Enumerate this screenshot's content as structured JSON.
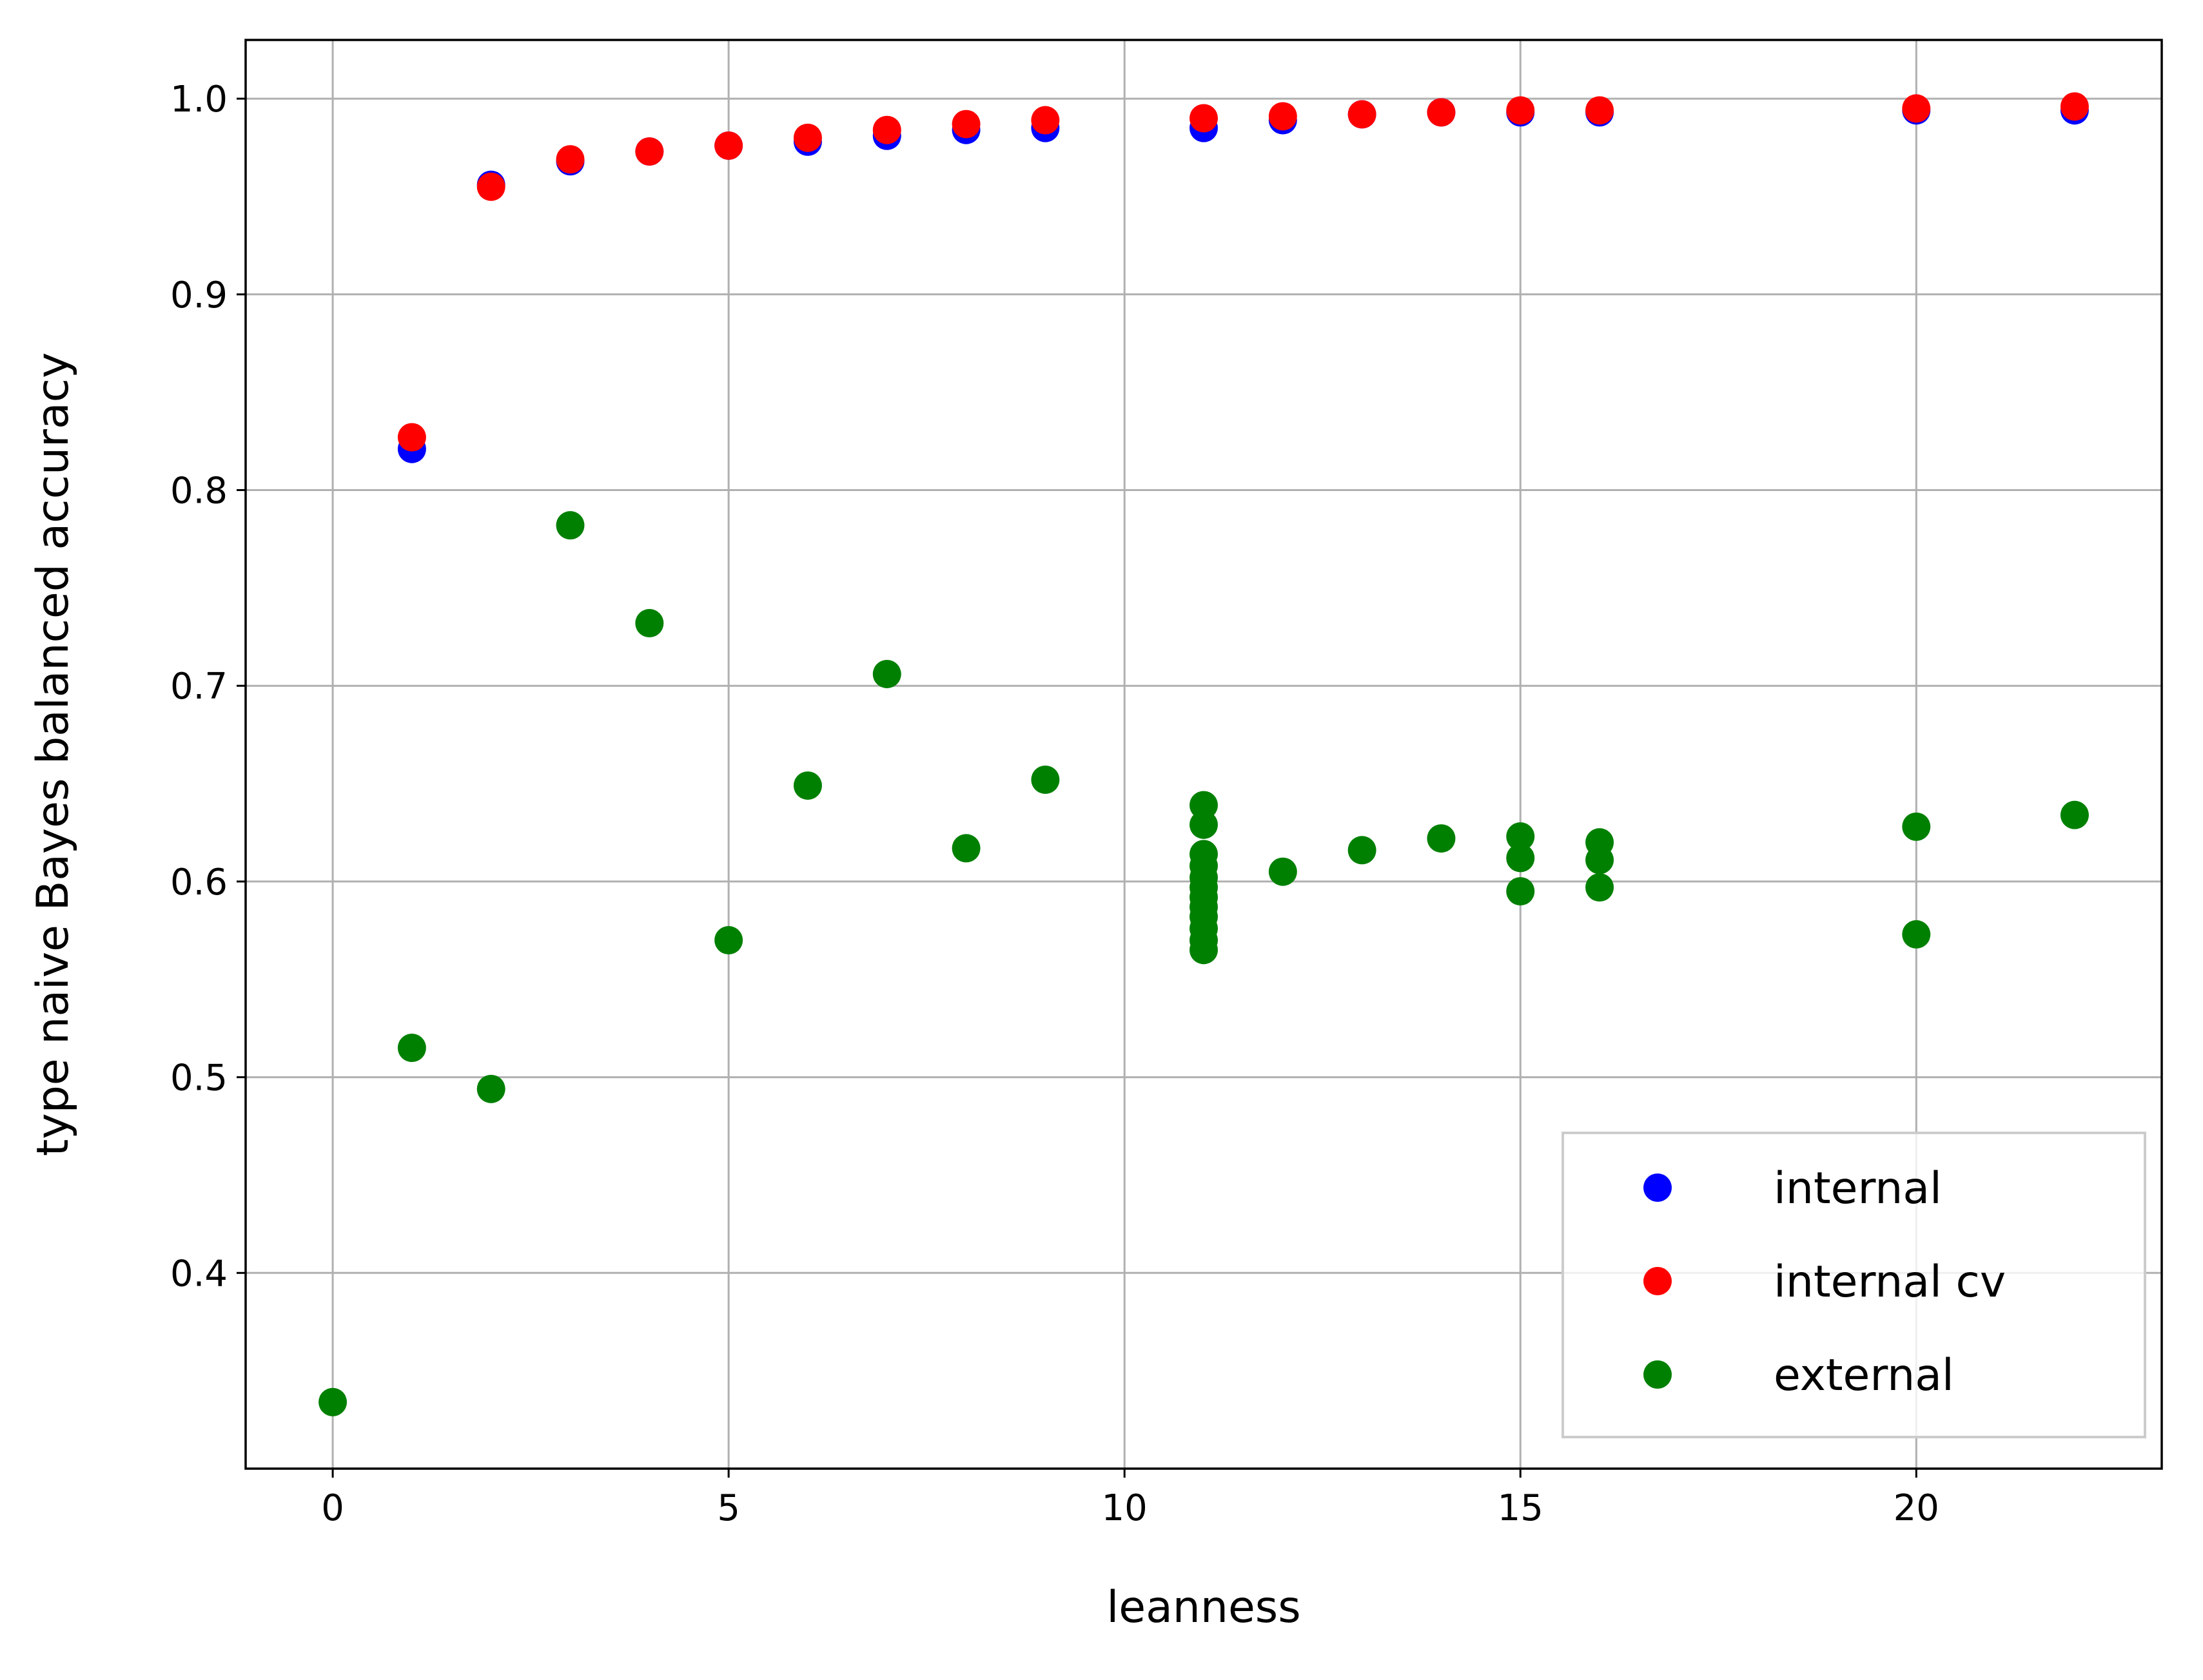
{
  "chart_data": {
    "type": "scatter",
    "xlabel": "leanness",
    "ylabel": "type naive Bayes balanced accuracy",
    "xlim": [
      -1.1,
      23.1
    ],
    "ylim": [
      0.3,
      1.03
    ],
    "xticks": [
      0,
      5,
      10,
      15,
      20
    ],
    "yticks": [
      0.4,
      0.5,
      0.6,
      0.7,
      0.8,
      0.9,
      1.0
    ],
    "xtick_labels": [
      "0",
      "5",
      "10",
      "15",
      "20"
    ],
    "ytick_labels": [
      "0.4",
      "0.5",
      "0.6",
      "0.7",
      "0.8",
      "0.9",
      "1.0"
    ],
    "grid": true,
    "legend_position": "bottom-right",
    "series": [
      {
        "name": "internal",
        "color": "#0000ff",
        "points": [
          [
            1,
            0.821
          ],
          [
            2,
            0.956
          ],
          [
            3,
            0.968
          ],
          [
            4,
            0.973
          ],
          [
            5,
            0.976
          ],
          [
            6,
            0.978
          ],
          [
            7,
            0.981
          ],
          [
            8,
            0.984
          ],
          [
            9,
            0.985
          ],
          [
            11,
            0.985
          ],
          [
            12,
            0.989
          ],
          [
            13,
            0.992
          ],
          [
            14,
            0.993
          ],
          [
            15,
            0.993
          ],
          [
            16,
            0.993
          ],
          [
            20,
            0.994
          ],
          [
            22,
            0.994
          ]
        ]
      },
      {
        "name": "internal cv",
        "color": "#ff0000",
        "points": [
          [
            1,
            0.827
          ],
          [
            2,
            0.955
          ],
          [
            3,
            0.969
          ],
          [
            4,
            0.973
          ],
          [
            5,
            0.976
          ],
          [
            6,
            0.98
          ],
          [
            7,
            0.984
          ],
          [
            8,
            0.987
          ],
          [
            9,
            0.989
          ],
          [
            11,
            0.99
          ],
          [
            12,
            0.991
          ],
          [
            13,
            0.992
          ],
          [
            14,
            0.993
          ],
          [
            15,
            0.994
          ],
          [
            16,
            0.994
          ],
          [
            20,
            0.995
          ],
          [
            22,
            0.996
          ]
        ]
      },
      {
        "name": "external",
        "color": "#008000",
        "points": [
          [
            0,
            0.334
          ],
          [
            1,
            0.515
          ],
          [
            2,
            0.494
          ],
          [
            3,
            0.782
          ],
          [
            4,
            0.732
          ],
          [
            5,
            0.57
          ],
          [
            6,
            0.649
          ],
          [
            7,
            0.706
          ],
          [
            8,
            0.617
          ],
          [
            9,
            0.652
          ],
          [
            11,
            0.639
          ],
          [
            11,
            0.629
          ],
          [
            11,
            0.614
          ],
          [
            11,
            0.608
          ],
          [
            11,
            0.602
          ],
          [
            11,
            0.597
          ],
          [
            11,
            0.592
          ],
          [
            11,
            0.587
          ],
          [
            11,
            0.582
          ],
          [
            11,
            0.576
          ],
          [
            11,
            0.57
          ],
          [
            11,
            0.565
          ],
          [
            12,
            0.605
          ],
          [
            13,
            0.616
          ],
          [
            14,
            0.622
          ],
          [
            15,
            0.623
          ],
          [
            15,
            0.612
          ],
          [
            15,
            0.595
          ],
          [
            16,
            0.62
          ],
          [
            16,
            0.611
          ],
          [
            16,
            0.597
          ],
          [
            20,
            0.628
          ],
          [
            20,
            0.573
          ],
          [
            22,
            0.634
          ]
        ]
      }
    ]
  }
}
